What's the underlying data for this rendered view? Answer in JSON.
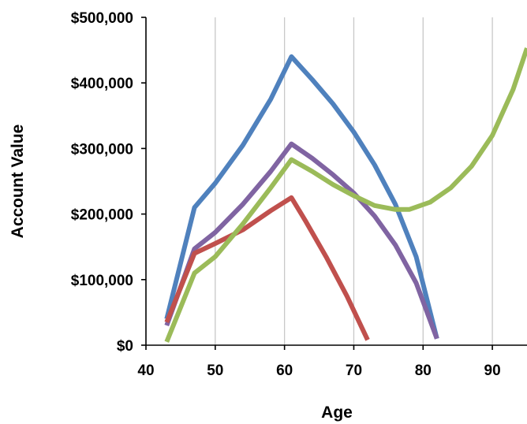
{
  "chart_data": {
    "type": "line",
    "title": "",
    "xlabel": "Age",
    "ylabel": "Account Value",
    "xlim": [
      40,
      95
    ],
    "ylim": [
      0,
      500000
    ],
    "x_ticks": [
      40,
      50,
      60,
      70,
      80,
      90
    ],
    "x_tick_labels": [
      "40",
      "50",
      "60",
      "70",
      "80",
      "90"
    ],
    "y_ticks": [
      0,
      100000,
      200000,
      300000,
      400000,
      500000
    ],
    "y_tick_labels": [
      "$0",
      "$100,000",
      "$200,000",
      "$300,000",
      "$400,000",
      "$500,000"
    ],
    "grid": "vertical",
    "legend": "none",
    "series": [
      {
        "color": "#4f81bd",
        "points": [
          [
            43,
            40000
          ],
          [
            47,
            210000
          ],
          [
            50,
            247000
          ],
          [
            54,
            305000
          ],
          [
            58,
            375000
          ],
          [
            61,
            440000
          ],
          [
            64,
            405000
          ],
          [
            67,
            368000
          ],
          [
            70,
            325000
          ],
          [
            73,
            275000
          ],
          [
            76,
            215000
          ],
          [
            79,
            135000
          ],
          [
            82,
            10000
          ]
        ]
      },
      {
        "color": "#8064a2",
        "points": [
          [
            43,
            30000
          ],
          [
            47,
            147000
          ],
          [
            50,
            172000
          ],
          [
            54,
            215000
          ],
          [
            58,
            265000
          ],
          [
            61,
            307000
          ],
          [
            64,
            285000
          ],
          [
            67,
            260000
          ],
          [
            70,
            232000
          ],
          [
            73,
            197000
          ],
          [
            76,
            153000
          ],
          [
            79,
            95000
          ],
          [
            82,
            10000
          ]
        ]
      },
      {
        "color": "#c0504d",
        "points": [
          [
            43,
            35000
          ],
          [
            47,
            140000
          ],
          [
            50,
            155000
          ],
          [
            54,
            176000
          ],
          [
            58,
            205000
          ],
          [
            61,
            225000
          ],
          [
            63,
            190000
          ],
          [
            66,
            135000
          ],
          [
            69,
            75000
          ],
          [
            72,
            8000
          ]
        ]
      },
      {
        "color": "#9bbb59",
        "points": [
          [
            43,
            5000
          ],
          [
            47,
            110000
          ],
          [
            50,
            135000
          ],
          [
            54,
            185000
          ],
          [
            58,
            240000
          ],
          [
            61,
            283000
          ],
          [
            64,
            265000
          ],
          [
            67,
            245000
          ],
          [
            70,
            228000
          ],
          [
            73,
            213000
          ],
          [
            76,
            207000
          ],
          [
            78,
            207000
          ],
          [
            81,
            218000
          ],
          [
            84,
            240000
          ],
          [
            87,
            273000
          ],
          [
            90,
            320000
          ],
          [
            93,
            390000
          ],
          [
            95,
            453000
          ]
        ]
      }
    ]
  }
}
